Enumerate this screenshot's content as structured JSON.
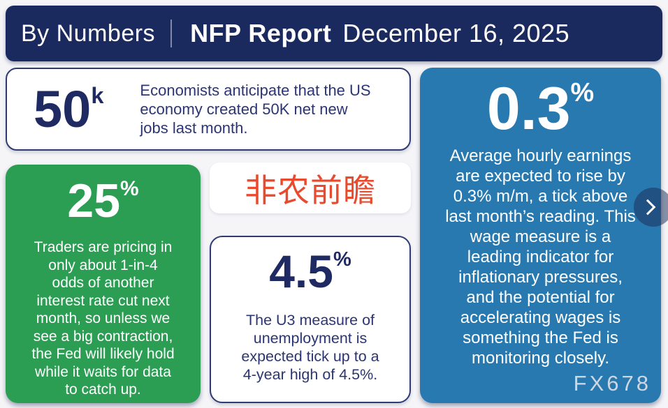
{
  "header": {
    "brand": "By Numbers",
    "report": "NFP Report",
    "date": "December 16, 2025"
  },
  "cards": {
    "jobs": {
      "value": "50",
      "unit": "k",
      "text": "Economists anticipate that the US\neconomy created 50K net new\njobs last month."
    },
    "rate_cut": {
      "value": "25",
      "unit": "%",
      "text": "Traders are pricing in\nonly about 1-in-4\nodds of another\ninterest rate cut next\nmonth, so unless we\nsee a big contraction,\nthe Fed will likely hold\nwhile it waits for data\nto catch up."
    },
    "preview": {
      "label": "非农前瞻"
    },
    "unemployment": {
      "value": "4.5",
      "unit": "%",
      "text": "The U3 measure of\nunemployment is\nexpected tick up to a\n4-year high of 4.5%."
    },
    "earnings": {
      "value": "0.3",
      "unit": "%",
      "text": "Average hourly earnings\nare expected to rise by\n0.3% m/m, a tick above\nlast month’s reading. This\nwage measure is a\nleading indicator for\ninflationary pressures,\nand the potential for\naccelerating wages is\nsomething the Fed is\nmonitoring closely."
    }
  },
  "watermark": "FX678",
  "nav": {
    "next_icon": "chevron-right"
  },
  "colors": {
    "header_navy": "#1a295e",
    "number_navy": "#1f2a63",
    "body_navy": "#2c3574",
    "green": "#2b9e53",
    "blue": "#2979b1",
    "red_accent": "#e94a2e",
    "background": "#f5f5f8",
    "watermark_gray": "#cfd6df"
  }
}
